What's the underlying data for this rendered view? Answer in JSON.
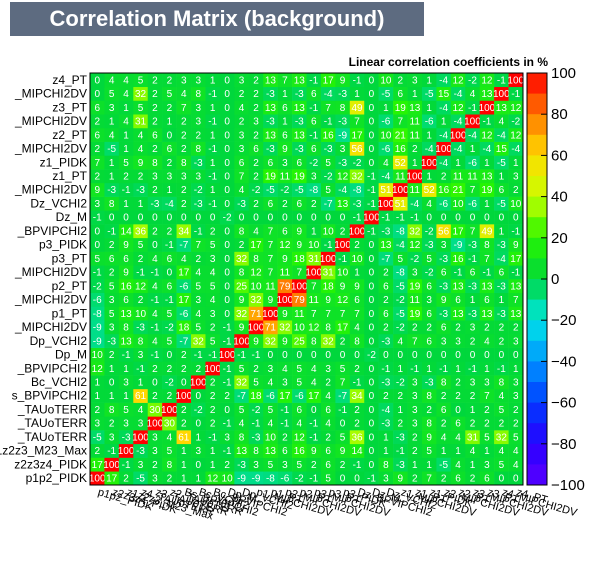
{
  "chart_data": {
    "type": "heatmap",
    "title": "Correlation Matrix (background)",
    "subtitle": "Linear correlation coefficients in %",
    "variables": [
      "p1p2_PIDK",
      "z2z3z4_PIDK",
      "z1z2z3_M23_Max",
      "z4_TAUoTERR",
      "z3_TAUoTERR",
      "z2_TAUoTERR",
      "Bs_BPVIPCHI2",
      "Bc_VCHI2",
      "Bc_BPVIPCHI2",
      "Dp_M",
      "Dp_VCHI2",
      "p1_MIPCHI2DV",
      "p1_PT",
      "p2_MIPCHI2DV",
      "p2_PT",
      "p3_MIPCHI2DV",
      "p3_PT",
      "p3_PIDK",
      "Dz_BPVIPCHI2",
      "Dz_M",
      "Dz_VCHI2",
      "z1_MIPCHI2DV",
      "z1_PT",
      "z1_PIDK",
      "z2_MIPCHI2DV",
      "z2_PT",
      "z3_MIPCHI2DV",
      "z3_PT",
      "z4_MIPCHI2DV",
      "z4_PT"
    ],
    "y_axis_labels": [
      "p1p2_PIDK",
      "z2z3z4_PIDK",
      "z1z2z3_M23_Max",
      "_TAUoTERR",
      "_TAUoTERR",
      "_TAUoTERR",
      "s_BPVIPCHI2",
      "Bc_VCHI2",
      "_BPVIPCHI2",
      "Dp_M",
      "Dp_VCHI2",
      "_MIPCHI2DV",
      "p1_PT",
      "_MIPCHI2DV",
      "p2_PT",
      "_MIPCHI2DV",
      "p3_PT",
      "p3_PIDK",
      "_BPVIPCHI2",
      "Dz_M",
      "Dz_VCHI2",
      "_MIPCHI2DV",
      "z1_PT",
      "z1_PIDK",
      "_MIPCHI2DV",
      "z2_PT",
      "_MIPCHI2DV",
      "z3_PT",
      "_MIPCHI2DV",
      "z4_PT"
    ],
    "zlim": [
      -100,
      100
    ],
    "z_ticks": [
      "100",
      "80",
      "60",
      "40",
      "20",
      "0",
      "−20",
      "−40",
      "−60",
      "−80",
      "−100"
    ],
    "values": [
      [
        100,
        17,
        2,
        -5,
        3,
        2,
        1,
        1,
        12,
        10,
        -9,
        -9,
        -8,
        -6,
        -2,
        -1,
        5,
        0,
        0,
        -1,
        3,
        9,
        2,
        7,
        2,
        6,
        2,
        6,
        0,
        0
      ],
      [
        17,
        100,
        -1,
        3,
        2,
        8,
        1,
        0,
        1,
        2,
        -3,
        3,
        5,
        3,
        5,
        2,
        6,
        2,
        -1,
        0,
        8,
        -3,
        1,
        1,
        -5,
        4,
        1,
        3,
        5,
        4
      ],
      [
        2,
        -1,
        100,
        -3,
        3,
        5,
        1,
        3,
        1,
        -1,
        13,
        8,
        13,
        6,
        16,
        9,
        6,
        9,
        14,
        0,
        1,
        -1,
        2,
        5,
        1,
        1,
        4,
        1,
        4,
        4
      ],
      [
        -5,
        3,
        -3,
        100,
        3,
        4,
        61,
        1,
        -1,
        3,
        8,
        -3,
        10,
        2,
        12,
        -1,
        2,
        5,
        36,
        0,
        1,
        -3,
        2,
        9,
        4,
        4,
        31,
        5,
        32,
        5
      ],
      [
        3,
        2,
        3,
        3,
        100,
        30,
        2,
        0,
        2,
        -1,
        4,
        -1,
        4,
        -1,
        4,
        -1,
        4,
        0,
        2,
        0,
        -3,
        2,
        3,
        8,
        2,
        6,
        2,
        2,
        2,
        2
      ],
      [
        2,
        8,
        5,
        4,
        30,
        100,
        2,
        -2,
        2,
        0,
        5,
        -2,
        5,
        -1,
        6,
        0,
        6,
        -1,
        2,
        0,
        -4,
        1,
        3,
        2,
        6,
        0,
        1,
        2,
        5,
        2
      ],
      [
        1,
        1,
        1,
        61,
        2,
        2,
        100,
        0,
        2,
        2,
        -7,
        18,
        -6,
        17,
        -6,
        17,
        4,
        -7,
        34,
        0,
        2,
        2,
        3,
        8,
        2,
        2,
        2,
        7,
        4,
        3
      ],
      [
        1,
        0,
        3,
        1,
        0,
        -2,
        0,
        100,
        2,
        -1,
        32,
        5,
        4,
        3,
        5,
        4,
        2,
        7,
        -1,
        0,
        -3,
        -2,
        3,
        -3,
        8,
        2,
        3,
        3,
        8,
        3
      ],
      [
        12,
        1,
        1,
        -1,
        2,
        2,
        2,
        2,
        100,
        -1,
        5,
        2,
        3,
        4,
        5,
        4,
        3,
        5,
        2,
        0,
        -1,
        1,
        -1,
        1,
        -1,
        1,
        -1,
        1,
        -1,
        1
      ],
      [
        10,
        2,
        -1,
        3,
        -1,
        0,
        2,
        -1,
        -1,
        100,
        -1,
        -1,
        0,
        0,
        0,
        0,
        0,
        0,
        0,
        -2,
        0,
        0,
        0,
        0,
        0,
        0,
        0,
        0,
        0,
        0
      ],
      [
        -9,
        -3,
        13,
        8,
        4,
        5,
        -7,
        32,
        5,
        -1,
        100,
        9,
        32,
        9,
        25,
        8,
        32,
        2,
        8,
        0,
        -3,
        4,
        7,
        6,
        3,
        3,
        2,
        4,
        2,
        3
      ],
      [
        -9,
        3,
        8,
        -3,
        -1,
        -2,
        18,
        5,
        2,
        -1,
        9,
        100,
        71,
        32,
        10,
        12,
        8,
        17,
        4,
        0,
        2,
        -2,
        2,
        2,
        6,
        2,
        3,
        2,
        2,
        2
      ],
      [
        -8,
        5,
        13,
        10,
        4,
        5,
        -6,
        4,
        3,
        0,
        32,
        71,
        100,
        9,
        11,
        7,
        7,
        7,
        7,
        0,
        6,
        -5,
        19,
        6,
        -3,
        13,
        -3,
        13,
        -3,
        13
      ],
      [
        -6,
        3,
        6,
        2,
        -1,
        -1,
        17,
        3,
        4,
        0,
        9,
        32,
        9,
        100,
        79,
        11,
        9,
        12,
        6,
        0,
        2,
        -2,
        11,
        3,
        9,
        6,
        1,
        6,
        1,
        7
      ],
      [
        -2,
        5,
        16,
        12,
        4,
        6,
        -6,
        5,
        5,
        0,
        25,
        10,
        11,
        79,
        100,
        7,
        18,
        9,
        9,
        0,
        6,
        -5,
        19,
        6,
        -3,
        13,
        -3,
        13,
        -3,
        13
      ],
      [
        -1,
        2,
        9,
        -1,
        -1,
        0,
        17,
        4,
        4,
        0,
        8,
        12,
        7,
        11,
        7,
        100,
        31,
        10,
        1,
        0,
        2,
        -8,
        3,
        -2,
        6,
        -1,
        6,
        -1,
        6,
        -1
      ],
      [
        5,
        6,
        6,
        2,
        4,
        6,
        4,
        2,
        3,
        0,
        32,
        8,
        7,
        9,
        18,
        31,
        100,
        -1,
        10,
        0,
        -7,
        5,
        -2,
        5,
        -3,
        16,
        -1,
        7,
        -4,
        17
      ],
      [
        0,
        2,
        9,
        5,
        0,
        -1,
        -7,
        7,
        5,
        0,
        2,
        17,
        7,
        12,
        9,
        10,
        -1,
        100,
        2,
        0,
        13,
        -4,
        12,
        -3,
        3,
        -9,
        -3,
        8,
        -3,
        9
      ],
      [
        0,
        -1,
        14,
        36,
        2,
        2,
        34,
        -1,
        2,
        0,
        8,
        4,
        7,
        6,
        9,
        1,
        10,
        2,
        100,
        -1,
        -3,
        -8,
        32,
        -2,
        56,
        17,
        7,
        49,
        1,
        -1
      ],
      [
        -1,
        0,
        0,
        0,
        0,
        0,
        0,
        0,
        0,
        -2,
        0,
        0,
        0,
        0,
        0,
        0,
        0,
        0,
        -1,
        100,
        -1,
        -1,
        -1,
        0,
        0,
        0,
        0,
        0,
        0,
        0
      ],
      [
        3,
        8,
        1,
        1,
        -3,
        -4,
        2,
        -3,
        -1,
        0,
        -3,
        2,
        6,
        2,
        6,
        2,
        -7,
        13,
        -3,
        -1,
        100,
        51,
        -4,
        4,
        -6,
        10,
        -6,
        1,
        -5,
        10
      ],
      [
        9,
        -3,
        -1,
        -3,
        2,
        1,
        2,
        -2,
        1,
        0,
        4,
        -2,
        -5,
        -2,
        -5,
        -8,
        5,
        -4,
        -8,
        -1,
        51,
        100,
        11,
        52,
        16,
        21,
        7,
        19,
        6,
        2
      ],
      [
        2,
        1,
        2,
        2,
        3,
        3,
        3,
        3,
        -1,
        0,
        7,
        2,
        19,
        11,
        19,
        3,
        -2,
        12,
        32,
        -1,
        -4,
        11,
        100,
        1,
        2,
        11,
        11,
        13,
        1,
        3
      ],
      [
        7,
        1,
        5,
        9,
        8,
        2,
        8,
        -3,
        1,
        0,
        6,
        2,
        6,
        3,
        6,
        -2,
        5,
        -3,
        -2,
        0,
        4,
        52,
        1,
        100,
        -4,
        1,
        -6,
        1,
        -5,
        1
      ],
      [
        2,
        -5,
        1,
        4,
        2,
        6,
        2,
        8,
        -1,
        0,
        3,
        6,
        -3,
        9,
        -3,
        6,
        -3,
        3,
        56,
        0,
        -6,
        16,
        2,
        -4,
        100,
        -4,
        1,
        -4,
        15,
        -4
      ],
      [
        6,
        4,
        1,
        4,
        6,
        0,
        2,
        2,
        1,
        0,
        3,
        2,
        13,
        6,
        13,
        -1,
        16,
        -9,
        17,
        0,
        10,
        21,
        11,
        1,
        -4,
        100,
        -4,
        12,
        -4,
        12
      ],
      [
        2,
        1,
        4,
        31,
        2,
        1,
        2,
        3,
        -1,
        0,
        2,
        3,
        -3,
        1,
        -3,
        6,
        -1,
        -3,
        7,
        0,
        -6,
        7,
        11,
        -6,
        1,
        -4,
        100,
        -1,
        4,
        -2
      ],
      [
        6,
        3,
        1,
        5,
        2,
        2,
        7,
        3,
        1,
        0,
        4,
        2,
        13,
        6,
        13,
        -1,
        7,
        8,
        49,
        0,
        1,
        19,
        13,
        1,
        -4,
        12,
        -1,
        100,
        13,
        12
      ],
      [
        0,
        5,
        4,
        32,
        2,
        5,
        4,
        8,
        -1,
        0,
        2,
        2,
        -3,
        1,
        -3,
        6,
        -4,
        -3,
        1,
        0,
        -5,
        6,
        1,
        -5,
        15,
        -4,
        4,
        13,
        100,
        -1
      ],
      [
        0,
        4,
        4,
        5,
        2,
        2,
        3,
        3,
        1,
        0,
        3,
        2,
        13,
        7,
        13,
        -1,
        17,
        9,
        -1,
        0,
        10,
        2,
        3,
        1,
        -4,
        12,
        -2,
        12,
        -1,
        100
      ]
    ]
  }
}
